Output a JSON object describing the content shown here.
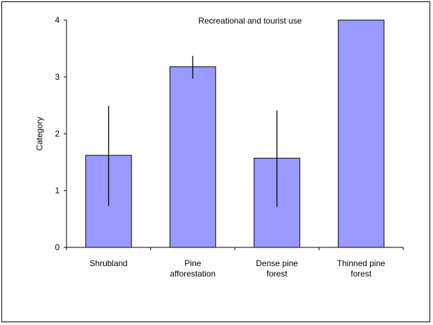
{
  "chart_data": {
    "type": "bar",
    "title": "Recreational and tourist use",
    "xlabel": "",
    "ylabel": "Category",
    "ylim": [
      0,
      4
    ],
    "yticks": [
      "0",
      "1",
      "2",
      "3",
      "4"
    ],
    "categories": [
      [
        "Shrubland"
      ],
      [
        "Pine",
        "afforestation"
      ],
      [
        "Dense pine",
        "forest"
      ],
      [
        "Thinned pine",
        "forest"
      ]
    ],
    "values": [
      1.62,
      3.18,
      1.57,
      4.0
    ],
    "errors": [
      {
        "low": 0.73,
        "high": 2.49
      },
      {
        "low": 2.97,
        "high": 3.37
      },
      {
        "low": 0.71,
        "high": 2.41
      },
      null
    ],
    "grid": false,
    "legend": "none",
    "colors": {
      "bar_fill": "#9999ff",
      "bar_stroke": "#000000",
      "error_bar": "#000000",
      "axis": "#000000"
    }
  }
}
